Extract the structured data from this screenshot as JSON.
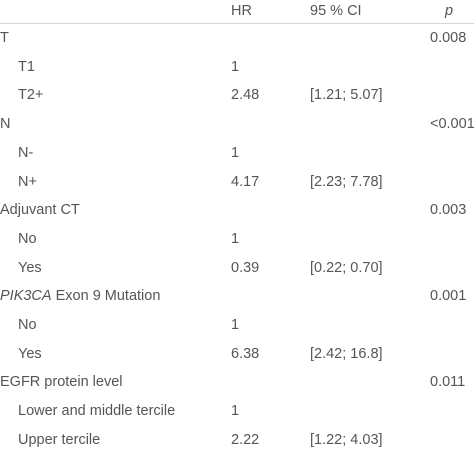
{
  "header": {
    "hr": "HR",
    "ci": "95 % CI",
    "p": "p"
  },
  "rows": [
    {
      "label": "T",
      "label_italic": "",
      "hr": "",
      "ci": "",
      "p": "0.008",
      "level": "top"
    },
    {
      "label": "T1",
      "label_italic": "",
      "hr": "1",
      "ci": "",
      "p": "",
      "level": "sub"
    },
    {
      "label": "T2+",
      "label_italic": "",
      "hr": "2.48",
      "ci": "[1.21; 5.07]",
      "p": "",
      "level": "sub"
    },
    {
      "label": "N",
      "label_italic": "",
      "hr": "",
      "ci": "",
      "p": "<0.001",
      "level": "top"
    },
    {
      "label": "N-",
      "label_italic": "",
      "hr": "1",
      "ci": "",
      "p": "",
      "level": "sub"
    },
    {
      "label": "N+",
      "label_italic": "",
      "hr": "4.17",
      "ci": "[2.23; 7.78]",
      "p": "",
      "level": "sub"
    },
    {
      "label": "Adjuvant CT",
      "label_italic": "",
      "hr": "",
      "ci": "",
      "p": "0.003",
      "level": "top"
    },
    {
      "label": "No",
      "label_italic": "",
      "hr": "1",
      "ci": "",
      "p": "",
      "level": "sub"
    },
    {
      "label": "Yes",
      "label_italic": "",
      "hr": "0.39",
      "ci": "[0.22; 0.70]",
      "p": "",
      "level": "sub"
    },
    {
      "label": " Exon 9 Mutation",
      "label_italic": "PIK3CA",
      "hr": "",
      "ci": "",
      "p": "0.001",
      "level": "top"
    },
    {
      "label": "No",
      "label_italic": "",
      "hr": "1",
      "ci": "",
      "p": "",
      "level": "sub"
    },
    {
      "label": "Yes",
      "label_italic": "",
      "hr": "6.38",
      "ci": "[2.42; 16.8]",
      "p": "",
      "level": "sub"
    },
    {
      "label": "EGFR protein level",
      "label_italic": "",
      "hr": "",
      "ci": "",
      "p": "0.011",
      "level": "top"
    },
    {
      "label": "Lower and middle tercile",
      "label_italic": "",
      "hr": "1",
      "ci": "",
      "p": "",
      "level": "sub"
    },
    {
      "label": "Upper tercile",
      "label_italic": "",
      "hr": "2.22",
      "ci": "[1.22; 4.03]",
      "p": "",
      "level": "sub"
    }
  ]
}
